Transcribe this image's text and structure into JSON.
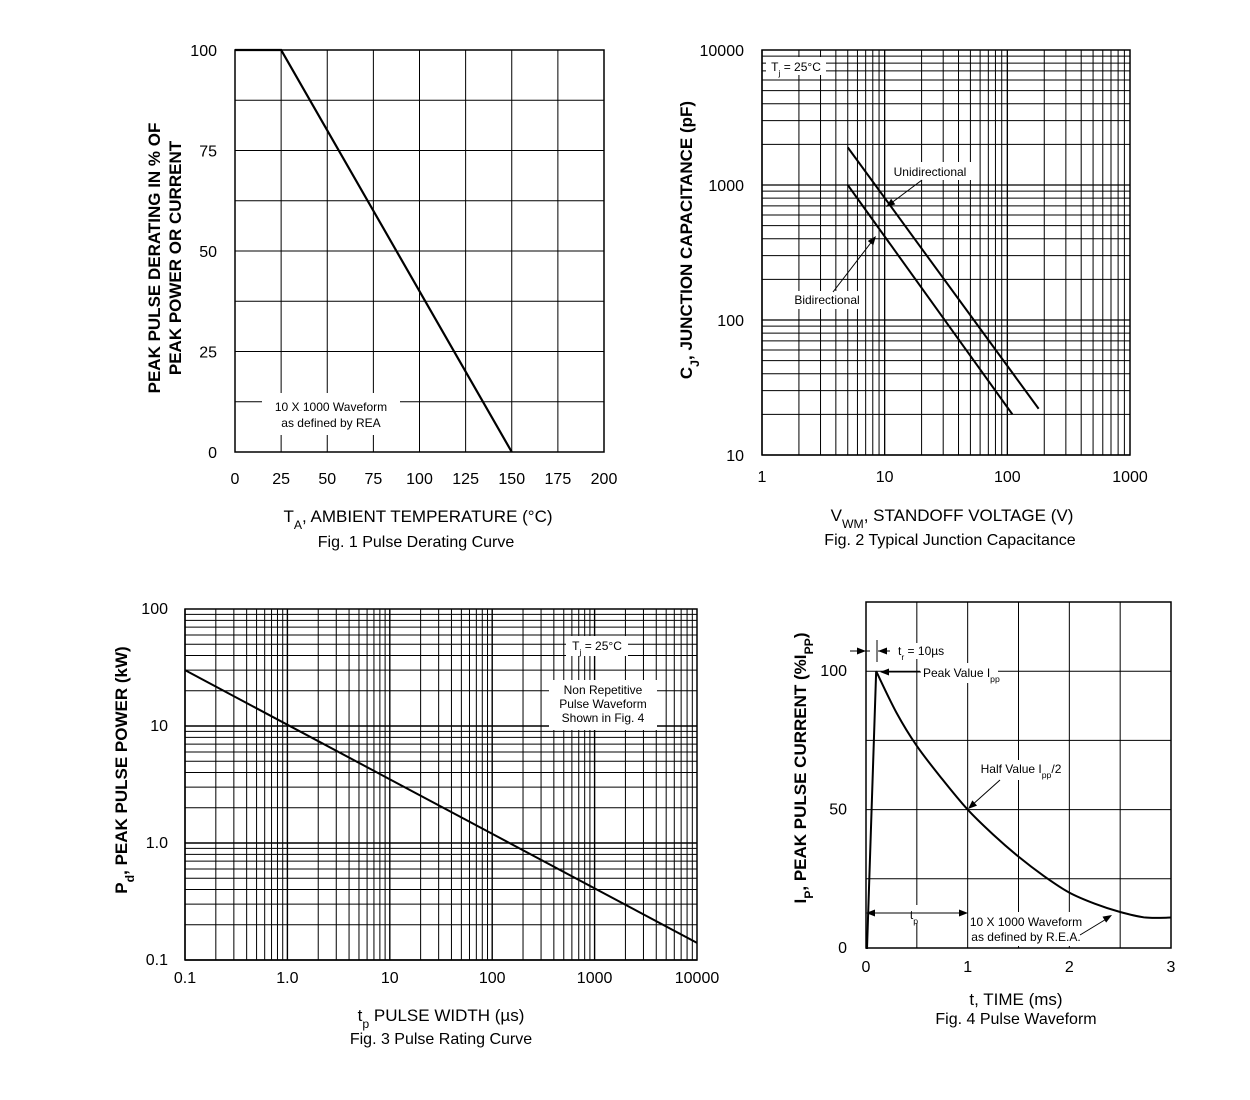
{
  "chart_data": [
    {
      "id": "fig1",
      "type": "line",
      "caption": "Fig. 1  Pulse Derating Curve",
      "xlabel": {
        "main": "T",
        "sub": "A",
        "rest": ", AMBIENT TEMPERATURE (°C)"
      },
      "ylabel_lines": [
        "PEAK PULSE DERATING IN % OF",
        "PEAK POWER OR CURRENT"
      ],
      "xlim": [
        0,
        200
      ],
      "ylim": [
        0,
        100
      ],
      "xticks": [
        "0",
        "25",
        "50",
        "75",
        "100",
        "125",
        "150",
        "175",
        "200"
      ],
      "yticks": [
        "0",
        "25",
        "50",
        "75",
        "100"
      ],
      "x": [
        0,
        25,
        150
      ],
      "y": [
        100,
        100,
        0
      ],
      "note": [
        "10 X 1000 Waveform",
        "as defined by REA"
      ]
    },
    {
      "id": "fig2",
      "type": "line",
      "caption": "Fig. 2  Typical Junction Capacitance",
      "xlabel": {
        "main": "V",
        "sub": "WM",
        "rest": ", STANDOFF VOLTAGE (V)"
      },
      "ylabel": {
        "main": "C",
        "sub": "J",
        "rest": ", JUNCTION CAPACITANCE (pF)"
      },
      "xscale": "log",
      "yscale": "log",
      "xlim": [
        1,
        1000
      ],
      "ylim": [
        10,
        10000
      ],
      "xticks": [
        "1",
        "10",
        "100",
        "1000"
      ],
      "yticks": [
        "10",
        "100",
        "1000",
        "10000"
      ],
      "condition": {
        "main": "T",
        "sub": "j",
        "rest": " = 25°C"
      },
      "series": [
        {
          "name": "Unidirectional",
          "x": [
            5,
            180
          ],
          "y": [
            1900,
            22
          ]
        },
        {
          "name": "Bidirectional",
          "x": [
            5,
            110
          ],
          "y": [
            1000,
            20
          ]
        }
      ]
    },
    {
      "id": "fig3",
      "type": "line",
      "caption": "Fig. 3 Pulse Rating Curve",
      "xlabel": {
        "main": "t",
        "sub": "p",
        "rest": " PULSE WIDTH (µs)"
      },
      "ylabel": {
        "main": "P",
        "sub": "d",
        "rest": ", PEAK PULSE POWER (kW)"
      },
      "xscale": "log",
      "yscale": "log",
      "xlim": [
        0.1,
        10000
      ],
      "ylim": [
        0.1,
        100
      ],
      "xticks": [
        "0.1",
        "1.0",
        "10",
        "100",
        "1000",
        "10000"
      ],
      "yticks": [
        "0.1",
        "1.0",
        "10",
        "100"
      ],
      "condition": {
        "main": "T",
        "sub": "j",
        "rest": " = 25°C"
      },
      "note": [
        "Non Repetitive",
        "Pulse Waveform",
        "Shown in Fig. 4"
      ],
      "x": [
        0.1,
        10000
      ],
      "y": [
        30,
        0.14
      ]
    },
    {
      "id": "fig4",
      "type": "line",
      "caption": "Fig. 4  Pulse Waveform",
      "xlabel": {
        "main": "t, TIME (ms)"
      },
      "ylabel": {
        "main": "I",
        "sub": "P",
        "rest": ", PEAK PULSE CURRENT (%I",
        "sub2": "PP",
        "rest2": ")"
      },
      "xlim": [
        0,
        3
      ],
      "ylim": [
        0,
        125
      ],
      "xticks": [
        "0",
        "1",
        "2",
        "3"
      ],
      "yticks": [
        "0",
        "50",
        "100"
      ],
      "x": [
        0,
        0.01,
        0.1,
        0.3,
        0.5,
        0.75,
        1.0,
        1.25,
        1.5,
        1.75,
        2.0,
        2.25,
        2.5,
        2.75,
        3.0
      ],
      "y": [
        0,
        0,
        100,
        85,
        73,
        61,
        50,
        41,
        33,
        26,
        20,
        16,
        13,
        11,
        11
      ],
      "annotations": {
        "tr": {
          "main": "t",
          "sub": "r",
          "rest": " = 10µs"
        },
        "peak": {
          "main": "Peak Value I",
          "sub": "pp"
        },
        "half": {
          "main": "Half Value I",
          "sub": "pp",
          "rest": "/2"
        },
        "tp": {
          "main": "t",
          "sub": "p"
        },
        "note": [
          "10 X 1000 Waveform",
          "as defined by R.E.A."
        ]
      }
    }
  ]
}
